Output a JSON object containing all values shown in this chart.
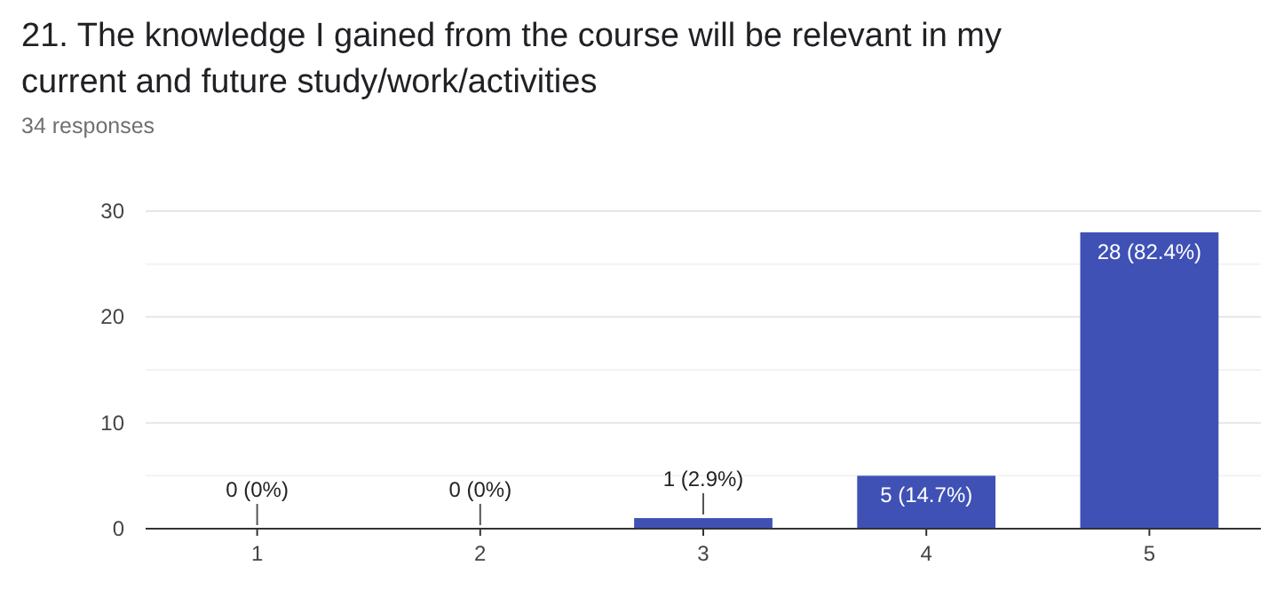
{
  "chart_data": {
    "type": "bar",
    "title": "21. The knowledge I gained from the course will be relevant in my current and future study/work/activities",
    "subtitle": "34 responses",
    "categories": [
      "1",
      "2",
      "3",
      "4",
      "5"
    ],
    "values": [
      0,
      0,
      1,
      5,
      28
    ],
    "color": "#3f51b5",
    "value_labels": [
      "0 (0%)",
      "0 (0%)",
      "1 (2.9%)",
      "5 (14.7%)",
      "28 (82.4%)"
    ],
    "ylim": [
      0,
      30
    ],
    "yticks": [
      0,
      {
        "value": 5,
        "label": null
      },
      10,
      {
        "value": 15,
        "label": null
      },
      20,
      {
        "value": 25,
        "label": null
      },
      30
    ],
    "grid": "y"
  }
}
